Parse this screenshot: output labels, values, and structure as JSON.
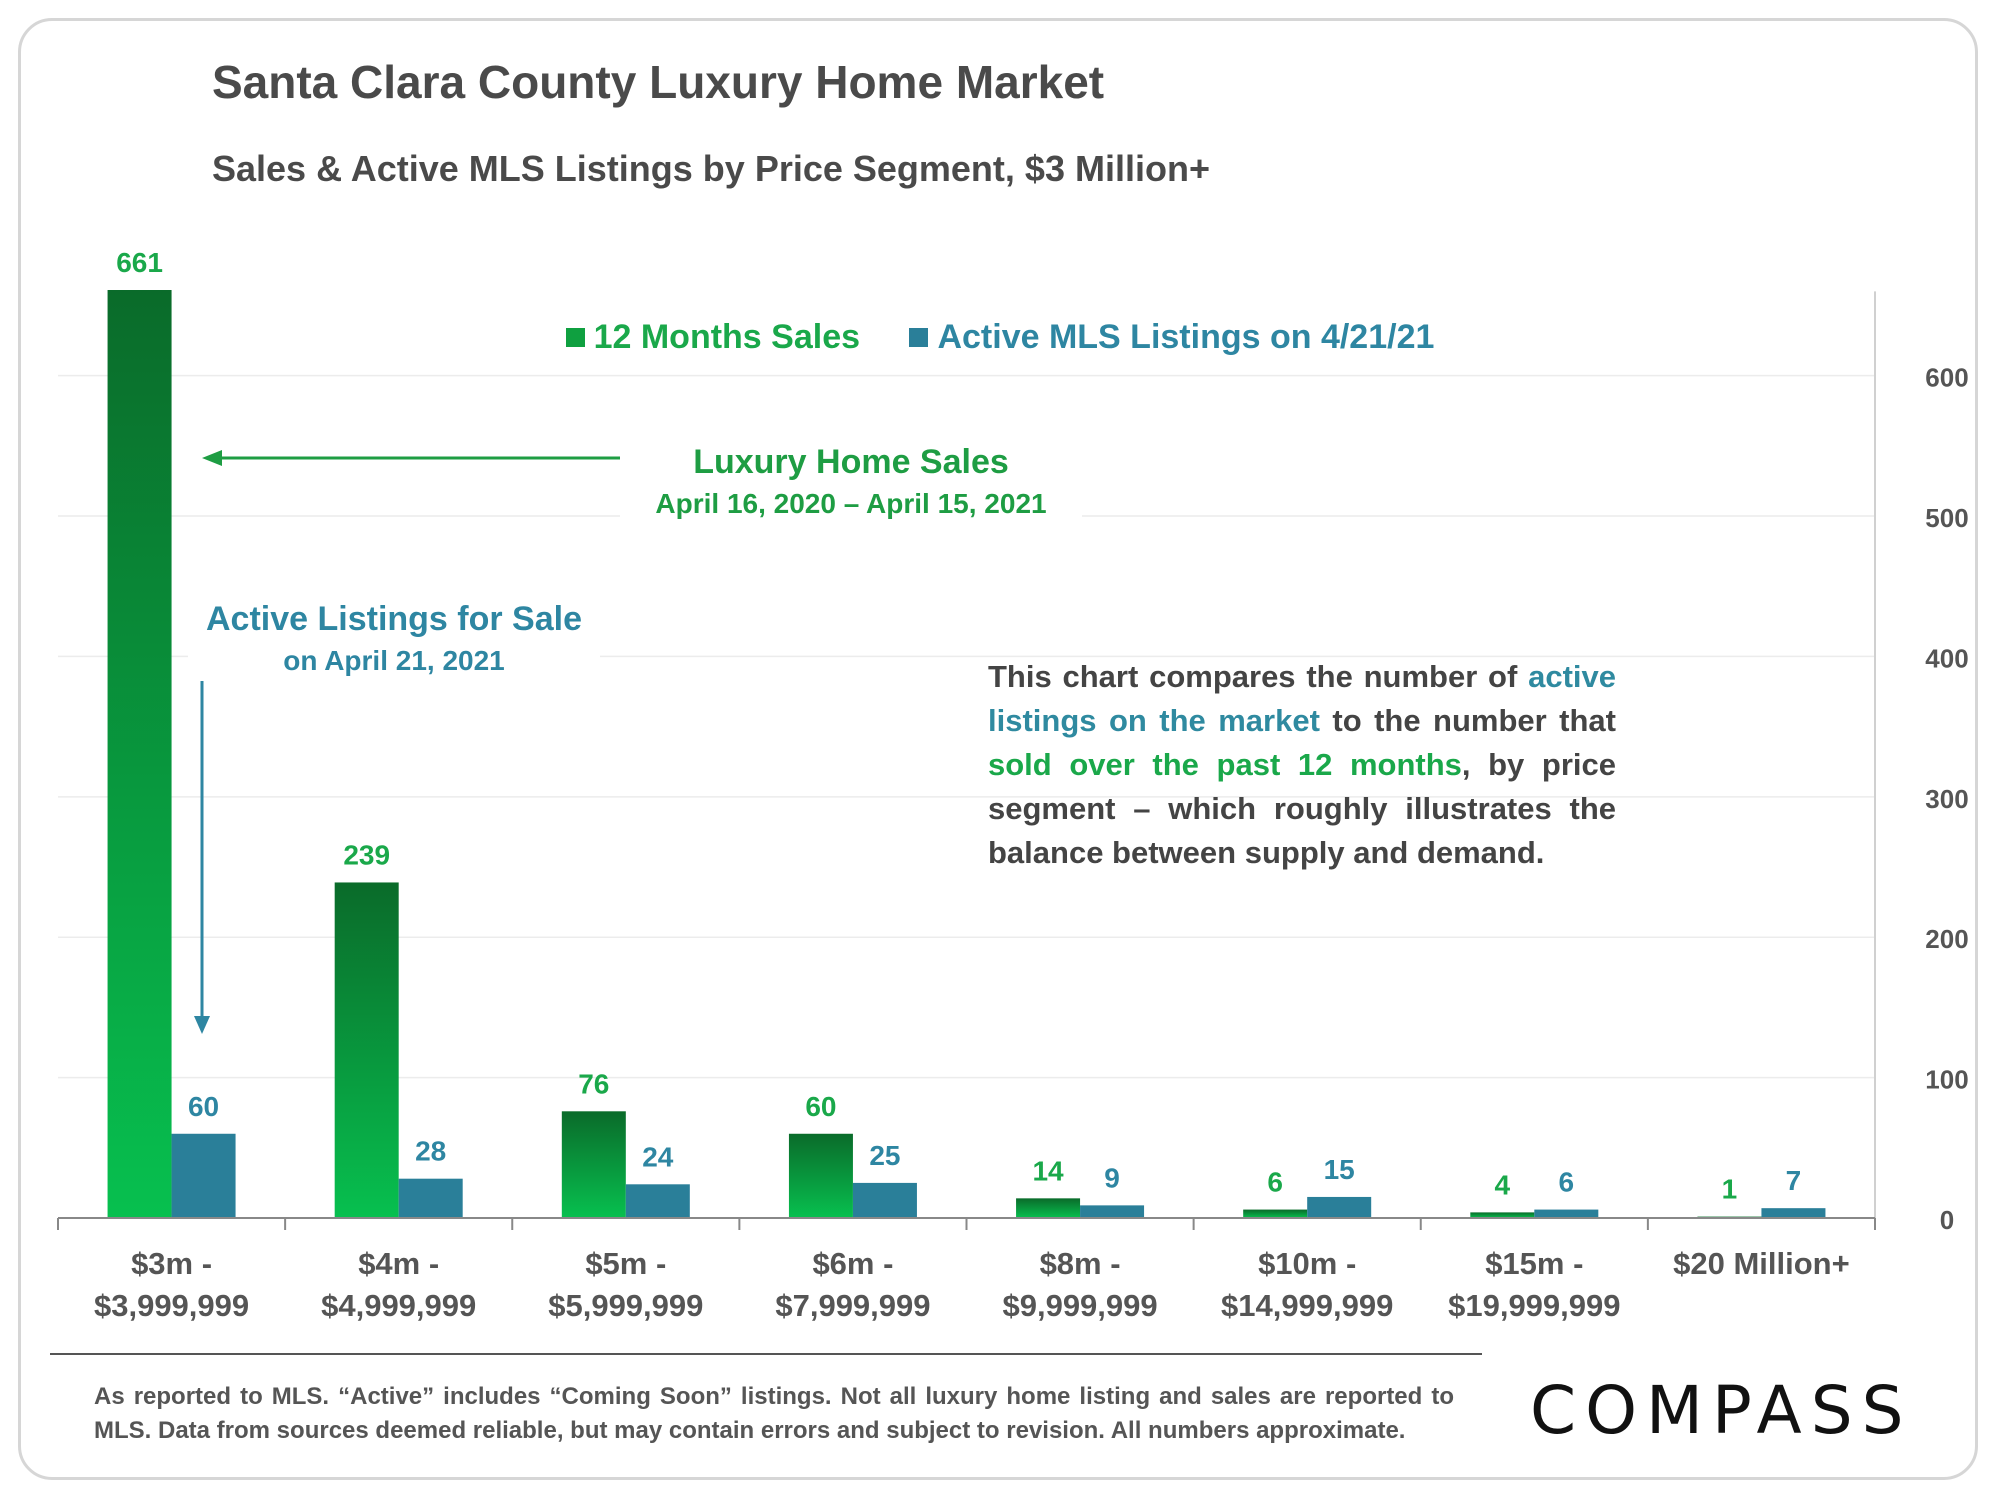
{
  "page": {
    "footnote": "As reported to MLS. “Active” includes “Coming Soon” listings. Not all luxury home listing and sales are reported to MLS. Data from sources deemed reliable, but may contain errors and subject to revision.  All numbers approximate.",
    "logo": "COMPASS",
    "note": {
      "t1": "This chart compares the number of ",
      "t2": "active listings on the market",
      "t3": " to the number that ",
      "t4": "sold over the past 12 months",
      "t5": ", by price segment – which roughly illustrates the balance between supply and demand."
    },
    "annotations": {
      "sales_title": "Luxury Home Sales",
      "sales_sub": "April 16, 2020 – April 15, 2021",
      "active_title": "Active Listings for Sale",
      "active_sub": "on April 21, 2021"
    },
    "colors": {
      "sales_dark": "#0a6b2a",
      "sales_light": "#07c04f",
      "active": "#2a7f99",
      "sales_label": "#1aa84a",
      "active_label": "#2e86a2",
      "axis_text": "#555555"
    }
  },
  "chart_data": {
    "type": "bar",
    "title": "Santa Clara County Luxury Home Market",
    "subtitle": "Sales & Active MLS Listings by Price Segment, $3 Million+",
    "categories": [
      [
        "$3m -",
        "$3,999,999"
      ],
      [
        "$4m -",
        "$4,999,999"
      ],
      [
        "$5m -",
        "$5,999,999"
      ],
      [
        "$6m -",
        "$7,999,999"
      ],
      [
        "$8m -",
        "$9,999,999"
      ],
      [
        "$10m -",
        "$14,999,999"
      ],
      [
        "$15m -",
        "$19,999,999"
      ],
      [
        "$20 Million+"
      ]
    ],
    "series": [
      {
        "name": "12 Months Sales",
        "values": [
          661,
          239,
          76,
          60,
          14,
          6,
          4,
          1
        ]
      },
      {
        "name": "Active MLS Listings on 4/21/21",
        "values": [
          60,
          28,
          24,
          25,
          9,
          15,
          6,
          7
        ]
      }
    ],
    "ylim": [
      0,
      661
    ],
    "yticks": [
      0,
      100,
      200,
      300,
      400,
      500,
      600
    ],
    "y_axis_side": "right",
    "grid": true,
    "legend": "top-center"
  }
}
